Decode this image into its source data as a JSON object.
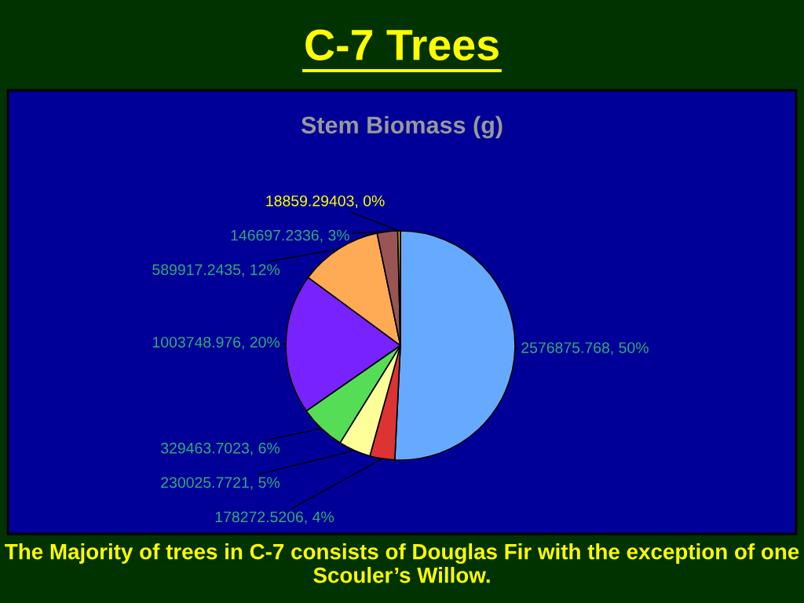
{
  "chart_data": {
    "type": "pie",
    "title": "C-7 Trees",
    "subtitle": "Stem Biomass (g)",
    "categories": [
      null,
      null,
      null,
      null,
      null,
      null,
      null,
      null
    ],
    "values": [
      2576875.768,
      178272.5206,
      230025.7721,
      329463.7023,
      1003748.976,
      589917.2435,
      146697.2336,
      18859.29403
    ],
    "colors": [
      "#66aaff",
      "#dd3333",
      "#ffff99",
      "#55dd55",
      "#7722ff",
      "#ffaa55",
      "#995555",
      "#ccaa22"
    ],
    "value_labels": [
      "2576875.768, 50%",
      "178272.5206, 4%",
      "230025.7721, 5%",
      "329463.7023, 6%",
      "1003748.976, 20%",
      "589917.2435, 12%",
      "146697.2336, 3%",
      "18859.29403, 0%"
    ],
    "annotations": [
      "The Majority of trees in C-7 consists of Douglas Fir with the exception of one Scouler’s Willow."
    ]
  }
}
